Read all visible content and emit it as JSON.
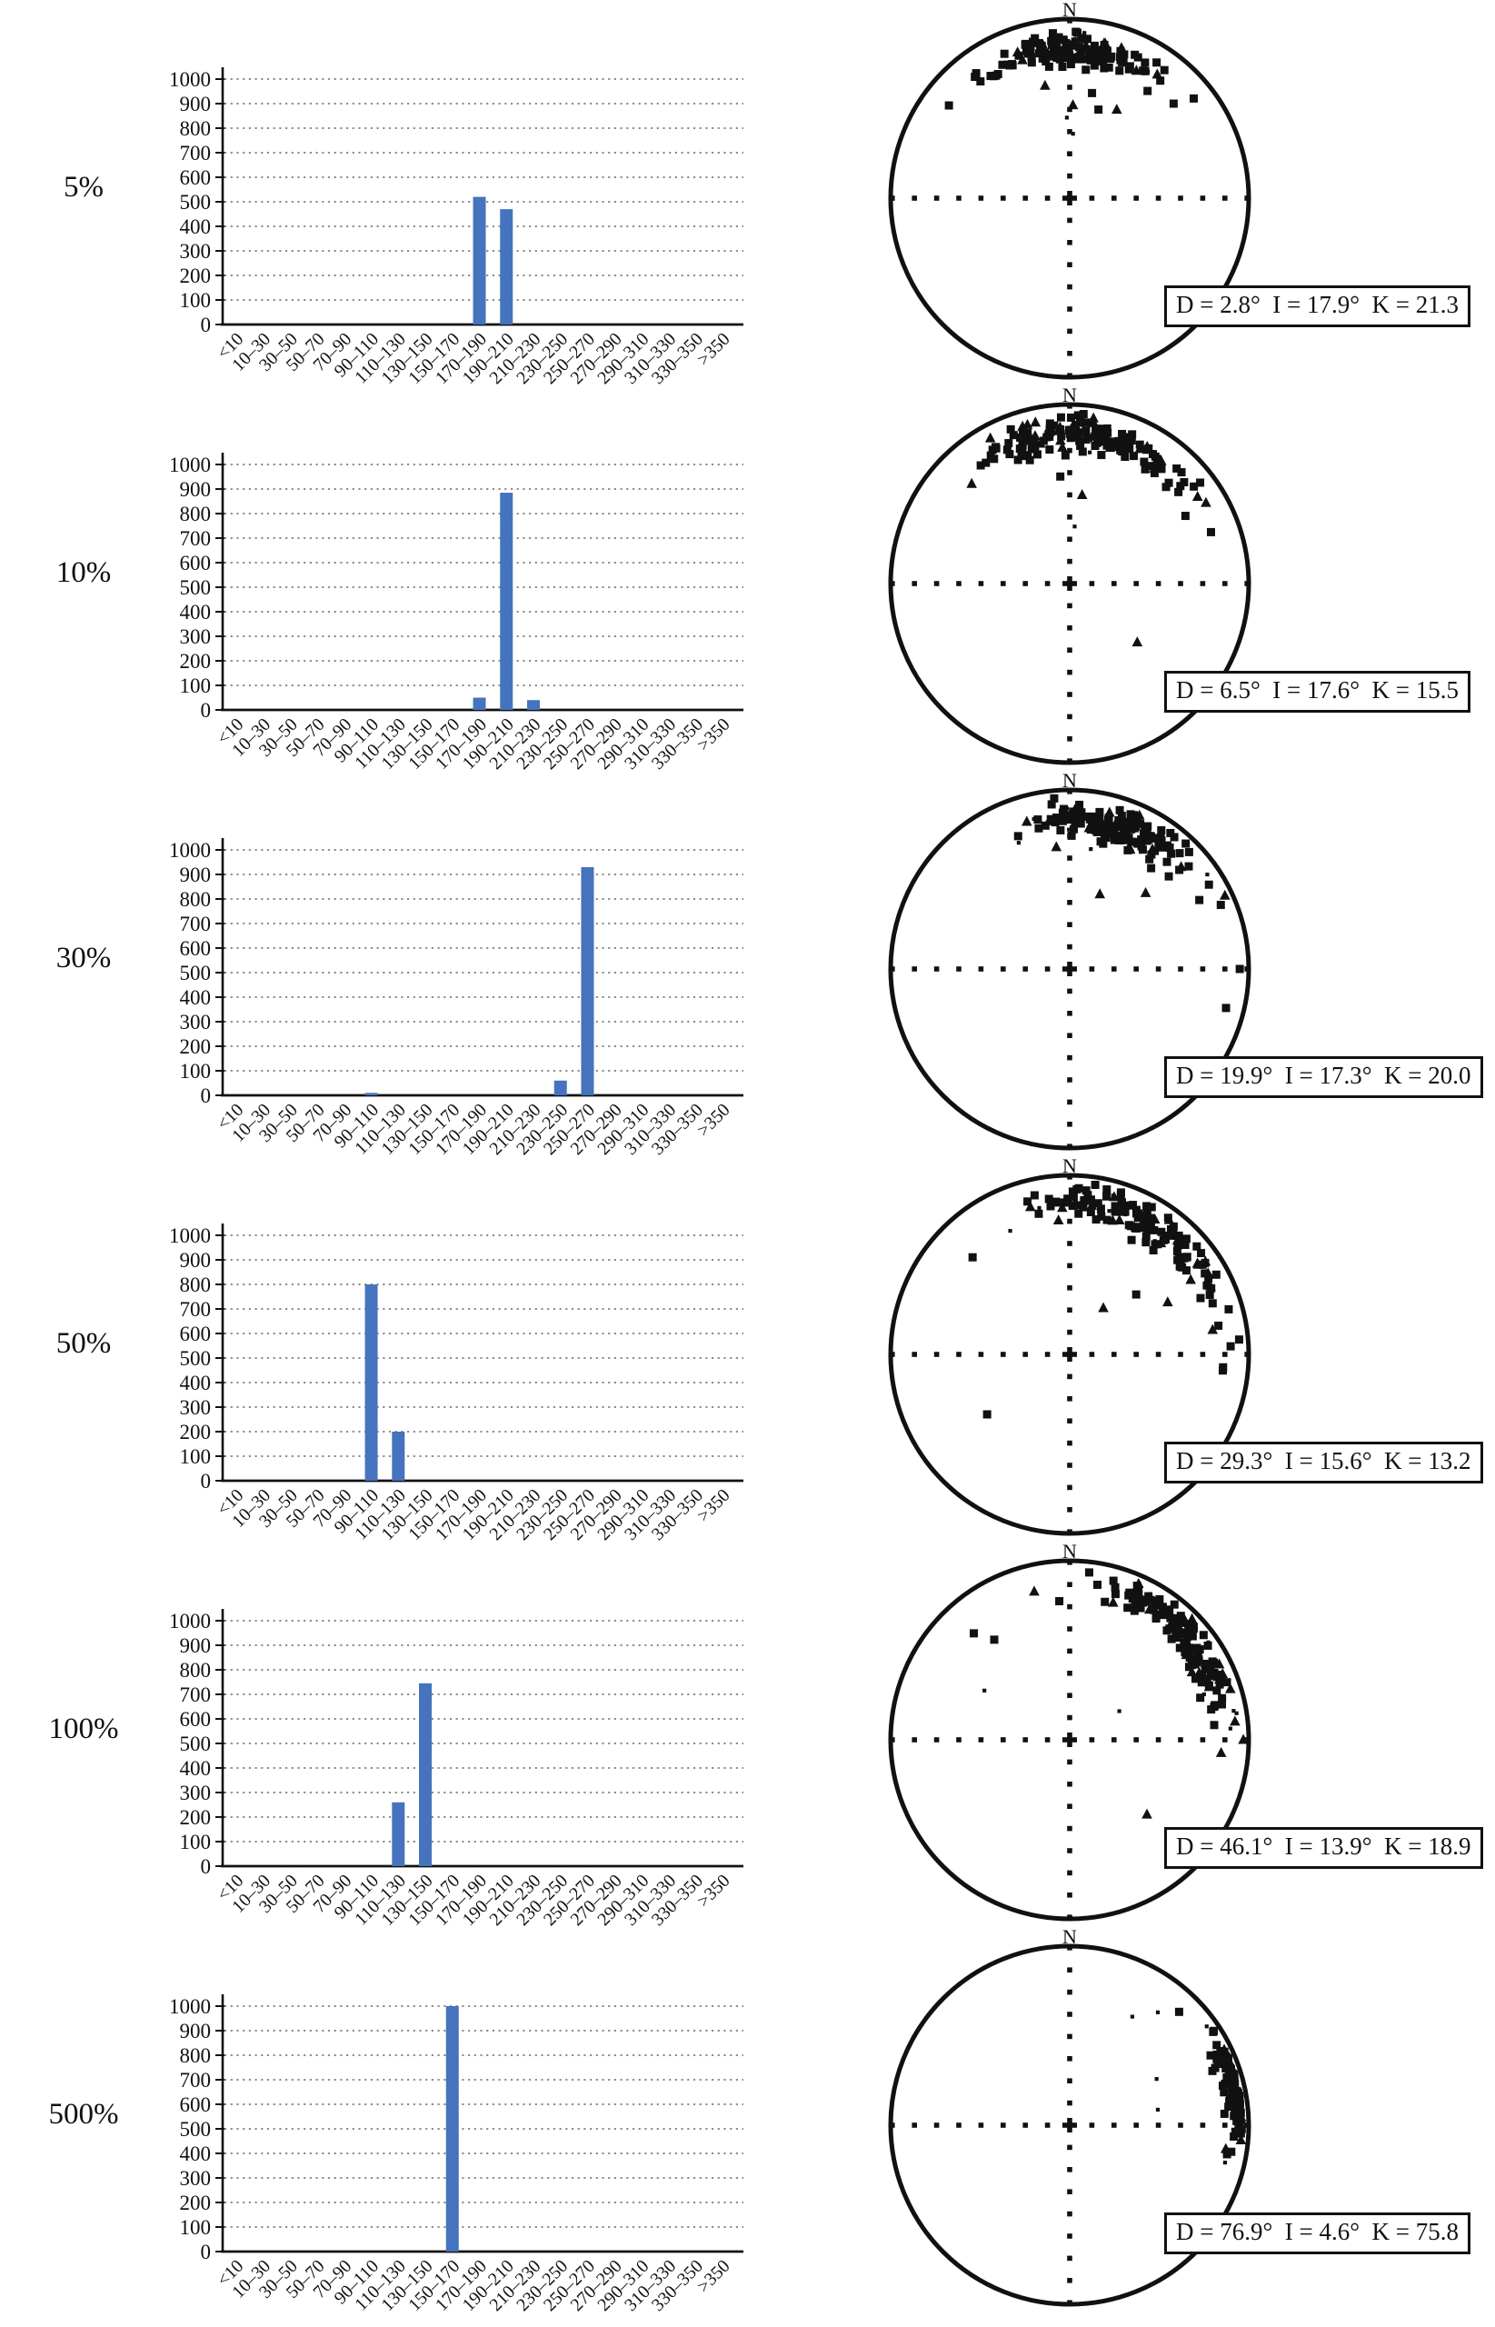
{
  "palette": {
    "bar": "#4673be",
    "grid": "#7f7f7f",
    "ink": "#111111",
    "background": "#ffffff"
  },
  "chart_data": {
    "type": "figure-rows",
    "description_visible_text_only": "",
    "categories": [
      "<10",
      "10–30",
      "30–50",
      "50–70",
      "70–90",
      "90–110",
      "110–130",
      "130–150",
      "150–170",
      "170–190",
      "190–210",
      "210–230",
      "230–250",
      "250–270",
      "270–290",
      "290–310",
      "310–330",
      "330–350",
      ">350"
    ],
    "ylim": [
      0,
      1000
    ],
    "ytick_step": 100,
    "rows": [
      {
        "label": "5%",
        "histogram": {
          "type": "bar",
          "values": [
            0,
            0,
            0,
            0,
            0,
            0,
            0,
            0,
            0,
            520,
            470,
            0,
            0,
            0,
            0,
            0,
            0,
            0,
            0
          ]
        },
        "stereonet": {
          "type": "scatter-stereonet",
          "north_label": "N",
          "D": 2.8,
          "I": 17.9,
          "K": 21.3,
          "stats_label": "D = 2.8°  I = 17.9°  K = 21.3",
          "scatter": {
            "seed": 7,
            "n": 150,
            "frac_triangle": 0.17,
            "frac_dot": 0.07,
            "outliers": [
              [
                2,
                0.52,
                "t"
              ],
              [
                358,
                0.45,
                "d"
              ],
              [
                3,
                0.36,
                "d"
              ],
              [
                359,
                0.25,
                "d"
              ],
              [
                12,
                0.6,
                "s"
              ],
              [
                330,
                0.8,
                "s"
              ],
              [
                36,
                0.74,
                "s"
              ],
              [
                28,
                0.56,
                "t"
              ],
              [
                322,
                0.86,
                "s"
              ],
              [
                18,
                0.52,
                "s"
              ]
            ]
          }
        }
      },
      {
        "label": "10%",
        "histogram": {
          "type": "bar",
          "values": [
            0,
            0,
            0,
            0,
            0,
            0,
            0,
            0,
            0,
            50,
            885,
            40,
            0,
            0,
            0,
            0,
            0,
            0,
            0
          ]
        },
        "stereonet": {
          "type": "scatter-stereonet",
          "north_label": "N",
          "D": 6.5,
          "I": 17.6,
          "K": 15.5,
          "stats_label": "D = 6.5°  I = 17.6°  K = 15.5",
          "scatter": {
            "seed": 13,
            "n": 150,
            "frac_triangle": 0.15,
            "frac_dot": 0.07,
            "outliers": [
              [
                348,
                0.92,
                "t"
              ],
              [
                35,
                0.85,
                "s"
              ],
              [
                52,
                0.88,
                "s"
              ],
              [
                8,
                0.5,
                "t"
              ],
              [
                131,
                0.5,
                "t"
              ],
              [
                70,
                0.84,
                "s"
              ],
              [
                5,
                0.32,
                "d"
              ],
              [
                355,
                0.6,
                "s"
              ]
            ]
          }
        }
      },
      {
        "label": "30%",
        "histogram": {
          "type": "bar",
          "values": [
            0,
            0,
            0,
            0,
            0,
            10,
            0,
            0,
            0,
            0,
            0,
            0,
            60,
            930,
            0,
            0,
            0,
            0,
            0
          ]
        },
        "stereonet": {
          "type": "scatter-stereonet",
          "north_label": "N",
          "D": 19.9,
          "I": 17.3,
          "K": 20.0,
          "stats_label": "D = 19.9°  I = 17.3°  K = 20.0",
          "scatter": {
            "seed": 21,
            "n": 165,
            "frac_triangle": 0.15,
            "frac_dot": 0.1,
            "outliers": [
              [
                90,
                0.95,
                "s"
              ],
              [
                45,
                0.6,
                "t"
              ],
              [
                338,
                0.76,
                "d"
              ],
              [
                62,
                0.82,
                "s"
              ],
              [
                22,
                0.45,
                "t"
              ],
              [
                104,
                0.9,
                "s"
              ],
              [
                10,
                0.68,
                "d"
              ]
            ]
          }
        }
      },
      {
        "label": "50%",
        "histogram": {
          "type": "bar",
          "values": [
            0,
            0,
            0,
            0,
            0,
            800,
            200,
            0,
            0,
            0,
            0,
            0,
            0,
            0,
            0,
            0,
            0,
            0,
            0
          ]
        },
        "stereonet": {
          "type": "scatter-stereonet",
          "north_label": "N",
          "D": 29.3,
          "I": 15.6,
          "K": 13.2,
          "stats_label": "D = 29.3°  I = 15.6°  K = 13.2",
          "scatter": {
            "seed": 29,
            "n": 150,
            "frac_triangle": 0.2,
            "frac_dot": 0.06,
            "outliers": [
              [
                85,
                0.95,
                "s"
              ],
              [
                131,
                0.94,
                "t"
              ],
              [
                62,
                0.62,
                "t"
              ],
              [
                48,
                0.5,
                "s"
              ],
              [
                96,
                0.86,
                "s"
              ],
              [
                36,
                0.32,
                "t"
              ],
              [
                234,
                0.57,
                "s"
              ]
            ]
          }
        }
      },
      {
        "label": "100%",
        "histogram": {
          "type": "bar",
          "values": [
            0,
            0,
            0,
            0,
            0,
            0,
            260,
            745,
            0,
            0,
            0,
            0,
            0,
            0,
            0,
            0,
            0,
            0,
            0
          ]
        },
        "stereonet": {
          "type": "scatter-stereonet",
          "north_label": "N",
          "D": 46.1,
          "I": 13.9,
          "K": 18.9,
          "stats_label": "D = 46.1°  I = 13.9°  K = 18.9",
          "scatter": {
            "seed": 46,
            "n": 155,
            "frac_triangle": 0.18,
            "frac_dot": 0.07,
            "outliers": [
              [
                318,
                0.8,
                "s"
              ],
              [
                323,
                0.7,
                "s"
              ],
              [
                90,
                0.97,
                "t"
              ],
              [
                86,
                0.9,
                "d"
              ],
              [
                80,
                0.93,
                "d"
              ],
              [
                134,
                0.6,
                "t"
              ],
              [
                60,
                0.32,
                "d"
              ],
              [
                300,
                0.55,
                "d"
              ]
            ]
          }
        }
      },
      {
        "label": "500%",
        "histogram": {
          "type": "bar",
          "values": [
            0,
            0,
            0,
            0,
            0,
            0,
            0,
            0,
            1000,
            0,
            0,
            0,
            0,
            0,
            0,
            0,
            0,
            0,
            0
          ]
        },
        "stereonet": {
          "type": "scatter-stereonet",
          "north_label": "N",
          "D": 76.9,
          "I": 4.6,
          "K": 75.8,
          "stats_label": "D = 76.9°  I = 4.6°  K = 75.8",
          "scatter": {
            "seed": 77,
            "n": 115,
            "frac_triangle": 0.12,
            "frac_dot": 0.07,
            "outliers": [
              [
                62,
                0.55,
                "d"
              ],
              [
                80,
                0.5,
                "d"
              ],
              [
                95,
                0.96,
                "t"
              ],
              [
                44,
                0.88,
                "s"
              ],
              [
                38,
                0.8,
                "d"
              ],
              [
                30,
                0.7,
                "d"
              ]
            ]
          }
        }
      }
    ]
  }
}
